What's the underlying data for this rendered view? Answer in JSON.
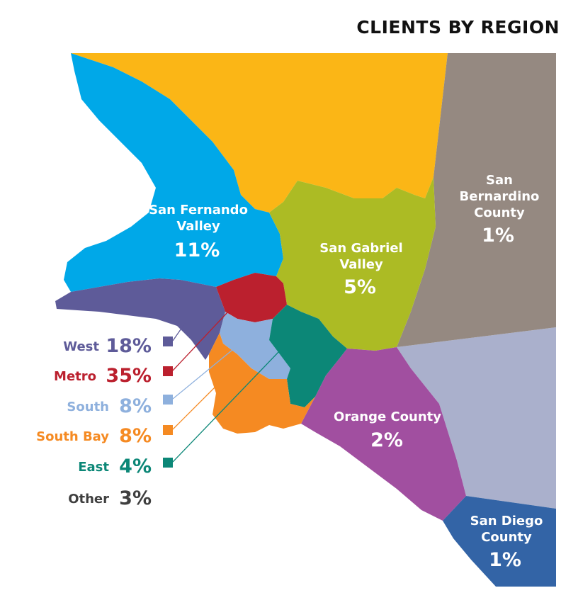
{
  "title": "CLIENTS BY REGION",
  "regions": [
    {
      "name_lines": [
        "San Fernando",
        "Valley"
      ],
      "percent": "11%",
      "color": "#00a8e8"
    },
    {
      "name_lines": [
        "San Gabriel",
        "Valley"
      ],
      "percent": "5%",
      "color": "#acbb24"
    },
    {
      "name_lines": [
        "San",
        "Bernardino",
        "County"
      ],
      "percent": "1%",
      "color": "#958981"
    },
    {
      "name_lines": [
        "Orange County"
      ],
      "percent": "2%",
      "color": "#a14fa0"
    },
    {
      "name_lines": [
        "San Diego",
        "County"
      ],
      "percent": "1%",
      "color": "#3364a6"
    }
  ],
  "legend": [
    {
      "name": "West",
      "percent": "18%",
      "color": "#5e5b99"
    },
    {
      "name": "Metro",
      "percent": "35%",
      "color": "#bb202e"
    },
    {
      "name": "South",
      "percent": "8%",
      "color": "#8eb0dd"
    },
    {
      "name": "South Bay",
      "percent": "8%",
      "color": "#f58a22"
    },
    {
      "name": "East",
      "percent": "4%",
      "color": "#0c8777"
    },
    {
      "name": "Other",
      "percent": "3%",
      "color": "#3f3f3f"
    }
  ],
  "colors": {
    "north_county": "#fbb616",
    "inland_area": "#aab0cc",
    "background": "#ffffff"
  }
}
